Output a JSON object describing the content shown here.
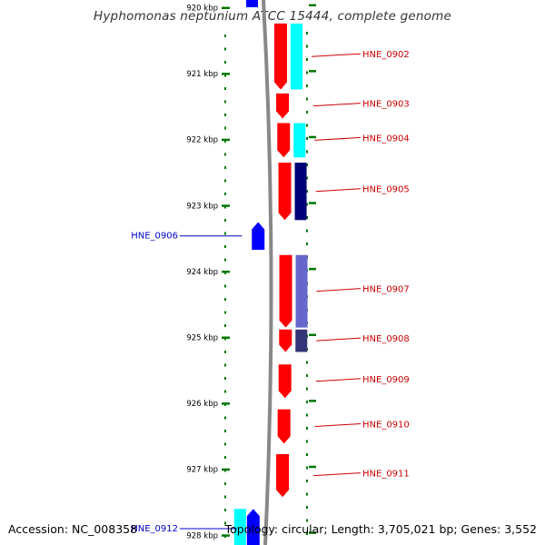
{
  "title": "Hyphomonas neptunium ATCC 15444, complete genome",
  "footer": {
    "accession": "Accession: NC_008358",
    "summary": "Topology: circular; Length: 3,705,021 bp; Genes: 3,552"
  },
  "colors": {
    "forward_cds": "#ff0000",
    "reverse_cds": "#0000ff",
    "forward_label": "#cc0000",
    "reverse_label": "#0000cc",
    "backbone": "#888888",
    "tick": "#007700",
    "feature_cyan": "#00ffff",
    "feature_navy": "#000077",
    "feature_slate": "#6666cc",
    "feature_dark_slate": "#333377"
  },
  "ruler": {
    "unit": "kbp",
    "ticks": [
      {
        "kbp": 920,
        "label": "920 kbp"
      },
      {
        "kbp": 921,
        "label": "921 kbp"
      },
      {
        "kbp": 922,
        "label": "922 kbp"
      },
      {
        "kbp": 923,
        "label": "923 kbp"
      },
      {
        "kbp": 924,
        "label": "924 kbp"
      },
      {
        "kbp": 925,
        "label": "925 kbp"
      },
      {
        "kbp": 926,
        "label": "926 kbp"
      },
      {
        "kbp": 927,
        "label": "927 kbp"
      },
      {
        "kbp": 928,
        "label": "928 kbp"
      }
    ]
  },
  "genes": [
    {
      "name": "HNE_0902",
      "strand": "+",
      "start_kbp": 920.24,
      "end_kbp": 921.24
    },
    {
      "name": "HNE_0903",
      "strand": "+",
      "start_kbp": 921.3,
      "end_kbp": 921.68
    },
    {
      "name": "HNE_0904",
      "strand": "+",
      "start_kbp": 921.75,
      "end_kbp": 922.27
    },
    {
      "name": "HNE_0905",
      "strand": "+",
      "start_kbp": 922.35,
      "end_kbp": 923.22
    },
    {
      "name": "HNE_0906",
      "strand": "-",
      "start_kbp": 923.25,
      "end_kbp": 923.67
    },
    {
      "name": "HNE_0907",
      "strand": "+",
      "start_kbp": 923.75,
      "end_kbp": 924.85
    },
    {
      "name": "HNE_0908",
      "strand": "+",
      "start_kbp": 924.88,
      "end_kbp": 925.22
    },
    {
      "name": "HNE_0909",
      "strand": "+",
      "start_kbp": 925.41,
      "end_kbp": 925.92
    },
    {
      "name": "HNE_0910",
      "strand": "+",
      "start_kbp": 926.09,
      "end_kbp": 926.61
    },
    {
      "name": "HNE_0911",
      "strand": "+",
      "start_kbp": 926.77,
      "end_kbp": 927.42
    },
    {
      "name": "HNE_0912",
      "strand": "-",
      "start_kbp": 927.6,
      "end_kbp": 928.2
    }
  ],
  "features": [
    {
      "track": "outer-right",
      "start_kbp": 920.24,
      "end_kbp": 921.24,
      "color": "#00ffff"
    },
    {
      "track": "outer-right",
      "start_kbp": 921.75,
      "end_kbp": 922.27,
      "color": "#00ffff"
    },
    {
      "track": "outer-right",
      "start_kbp": 922.35,
      "end_kbp": 923.22,
      "color": "#000077"
    },
    {
      "track": "outer-right",
      "start_kbp": 923.75,
      "end_kbp": 924.85,
      "color": "#6666cc"
    },
    {
      "track": "outer-right",
      "start_kbp": 924.88,
      "end_kbp": 925.22,
      "color": "#333377"
    },
    {
      "track": "outer-left",
      "start_kbp": 927.6,
      "end_kbp": 928.2,
      "color": "#00ffff"
    }
  ]
}
